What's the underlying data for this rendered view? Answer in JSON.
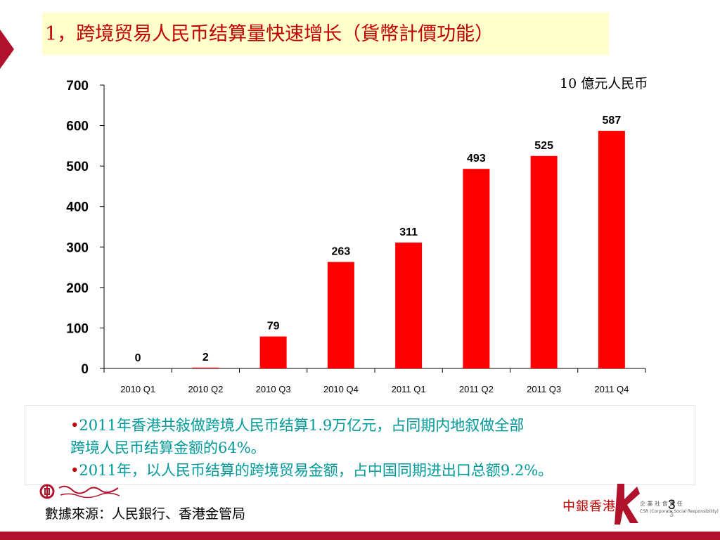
{
  "slide": {
    "title": "1，跨境贸易人民币结算量快速增长（貨幣計價功能）",
    "unit": "10  億元人民币",
    "colors": {
      "title": "#c00000",
      "bar": "#ff0000",
      "bullet_text": "#009999",
      "title_bg": "#ffffcc",
      "accent": "#b0122c"
    },
    "bullets": [
      {
        "marker": "•",
        "text_line1": "2011年香港共敍做跨境人民币结算1.9万亿元，占同期内地叙做全部",
        "text_line2": "跨境人民币结算金额的64%。"
      },
      {
        "marker": "•",
        "text_line1": "2011年，以人民币结算的跨境贸易金额，占中国同期进出口总额9.2%。"
      }
    ],
    "source": "數據來源：人民銀行、香港金管局",
    "brand": "中銀香港",
    "csr_line1": "企 業 社 會 責 任",
    "csr_line2": "CSR (Corporate Social Responsibility)",
    "page_number": "3",
    "page_number_small": "3"
  },
  "chart_data": {
    "type": "bar",
    "categories": [
      "2010 Q1",
      "2010 Q2",
      "2010 Q3",
      "2010 Q4",
      "2011 Q1",
      "2011 Q2",
      "2011 Q3",
      "2011 Q4"
    ],
    "values": [
      0,
      2,
      79,
      263,
      311,
      493,
      525,
      587
    ],
    "data_labels": [
      "0",
      "2",
      "79",
      "263",
      "311",
      "493",
      "525",
      "587"
    ],
    "title": "",
    "xlabel": "",
    "ylabel": "",
    "ylim": [
      0,
      700
    ],
    "yticks": [
      0,
      100,
      200,
      300,
      400,
      500,
      600,
      700
    ],
    "ytick_labels": [
      "0",
      "100",
      "200",
      "300",
      "400",
      "500",
      "600",
      "700"
    ],
    "grid": false,
    "legend": "none",
    "bar_color": "#ff0000"
  }
}
